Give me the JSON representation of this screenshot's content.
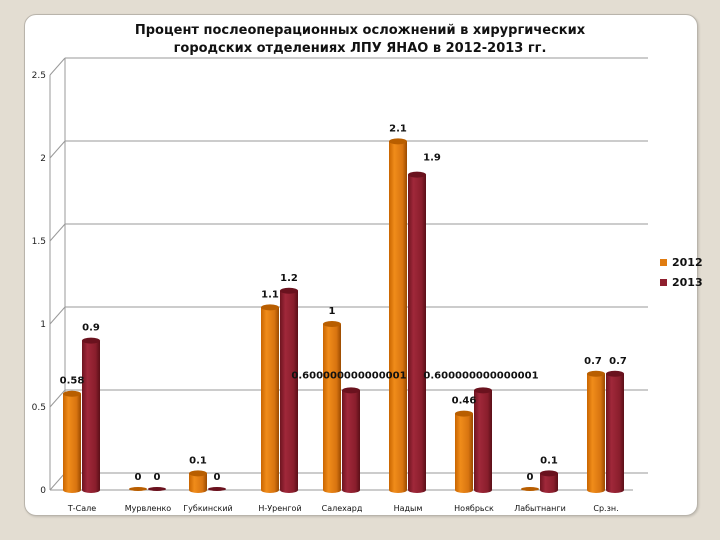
{
  "chart_data": {
    "type": "bar",
    "title": "Процент послеоперационных осложнений в хирургических городских отделениях  ЛПУ ЯНАО в 2012-2013 гг.",
    "title_lines": [
      "Процент послеоперационных осложнений в хирургических",
      "городских отделениях  ЛПУ ЯНАО в 2012-2013 гг."
    ],
    "xlabel": "",
    "ylabel": "",
    "ylim": [
      0,
      2.5
    ],
    "yticks": [
      "0",
      "0.5",
      "1",
      "1.5",
      "2",
      "2.5"
    ],
    "grid": true,
    "style": "3d-cylinder",
    "legend_position": "right",
    "categories": [
      "Т-Сале",
      "Мурвленко",
      "Губкинский",
      "Н-Уренгой",
      "Салехард",
      "Надым",
      "Ноябрьск",
      "Лабытнанги",
      "Ср.зн."
    ],
    "series": [
      {
        "name": "2012",
        "color": "#e07c10",
        "values": [
          0.58,
          0,
          0.1,
          1.1,
          1,
          2.1,
          0.46,
          0,
          0.7
        ],
        "labels": [
          "0.58",
          "0",
          "0.1",
          "1.1",
          "1",
          "2.1",
          "0.46",
          "0",
          "0.7"
        ]
      },
      {
        "name": "2013",
        "color": "#8e1f2e",
        "values": [
          0.9,
          0,
          0,
          1.2,
          0.6,
          1.9,
          0.6,
          0.1,
          0.7
        ],
        "labels": [
          "0.9",
          "0",
          "0",
          "1.2",
          "0.600000000000001",
          "1.9",
          "0.600000000000001",
          "0.1",
          "0.7"
        ]
      }
    ]
  },
  "legend": [
    {
      "label": "2012",
      "color": "#e07c10"
    },
    {
      "label": "2013",
      "color": "#8e1f2e"
    }
  ]
}
